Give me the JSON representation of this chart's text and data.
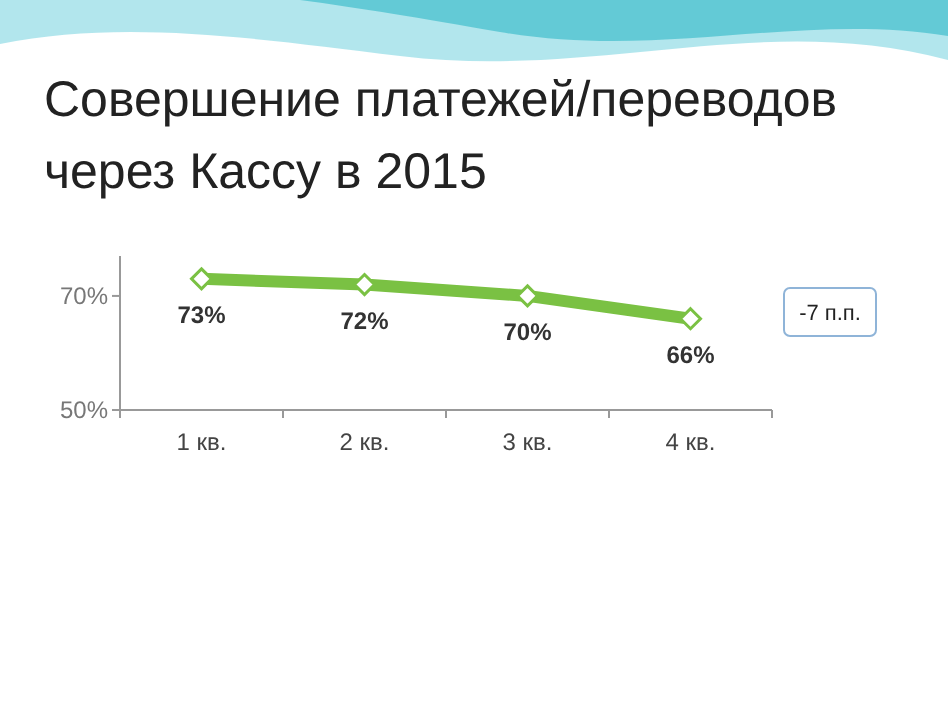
{
  "chart_data": {
    "type": "line",
    "title": "Совершение платежей/переводов через Кассу в 2015",
    "categories": [
      "1 кв.",
      "2 кв.",
      "3 кв.",
      "4 кв."
    ],
    "series": [
      {
        "color": "#7ac143",
        "values": [
          73,
          72,
          70,
          66
        ]
      }
    ],
    "value_labels": [
      "73%",
      "72%",
      "70%",
      "66%"
    ],
    "ylim": [
      50,
      77
    ],
    "yticks": [
      {
        "value": 50,
        "label": "50%"
      },
      {
        "value": 70,
        "label": "70%"
      }
    ],
    "marker": "diamond",
    "annotations": [
      "-7 п.п."
    ]
  }
}
